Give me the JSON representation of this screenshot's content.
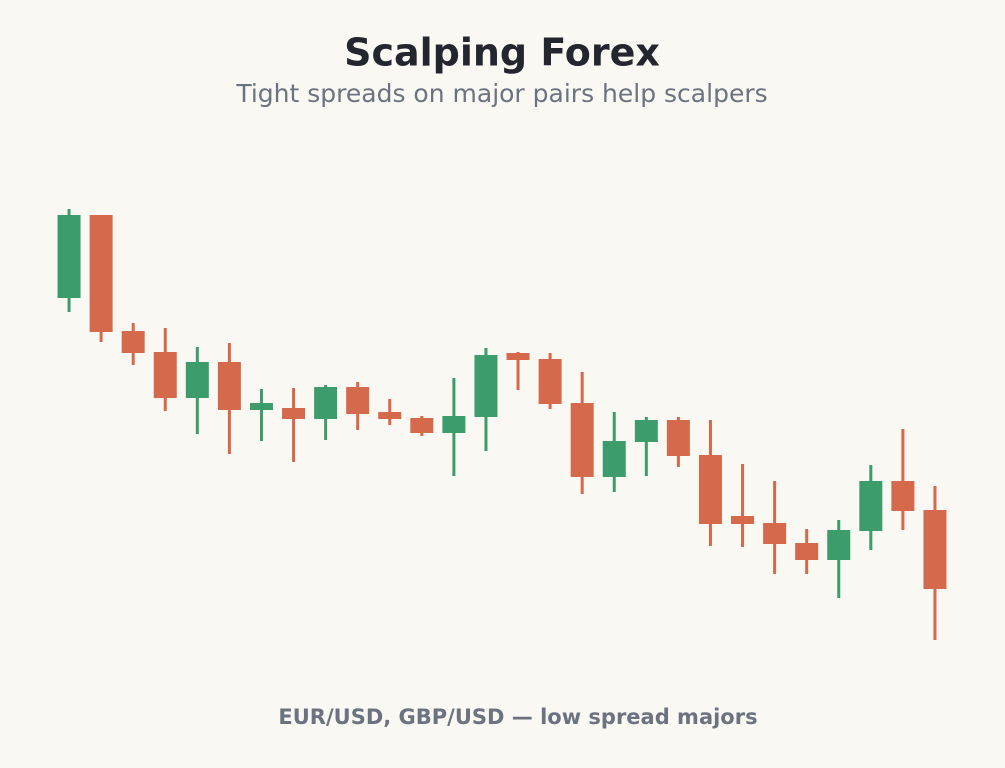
{
  "chart_data": {
    "type": "candlestick",
    "title": "Scalping Forex",
    "subtitle": "Tight spreads on major pairs help scalpers",
    "caption": "EUR/USD, GBP/USD — low spread majors",
    "up_color": "#3d9c6b",
    "down_color": "#d4694c",
    "ylim": [
      0,
      130
    ],
    "open": [
      90.5,
      111.25,
      82.25,
      77,
      65.5,
      74.5,
      62.5,
      63,
      60.25,
      68.25,
      62,
      60.5,
      56.75,
      60.75,
      76.75,
      75.25,
      64.25,
      45.75,
      54.5,
      60,
      51.25,
      36,
      34.25,
      29.25,
      25,
      32.25,
      44.75,
      37.5
    ],
    "high": [
      112.75,
      111.25,
      84.25,
      83,
      78.25,
      79.25,
      67.75,
      68,
      68.75,
      69.5,
      65.25,
      61,
      70.5,
      78,
      77,
      76.75,
      72,
      62,
      60.75,
      60.75,
      60,
      49,
      44.75,
      32.75,
      35,
      48.75,
      57.75,
      43.5
    ],
    "low": [
      87,
      79.5,
      73.75,
      62.25,
      56.5,
      51.5,
      54.75,
      49.5,
      55,
      57.5,
      58.75,
      56,
      46,
      52.25,
      67.5,
      62.75,
      41.5,
      42,
      46,
      48.25,
      28.5,
      28.25,
      21.5,
      21.5,
      15.5,
      27.5,
      32.5,
      5
    ],
    "close": [
      111.25,
      82,
      76.75,
      65.5,
      74.5,
      62.5,
      64.25,
      60.25,
      68.25,
      61.5,
      60.25,
      56.75,
      61,
      76.25,
      75,
      64,
      45.75,
      54.75,
      60,
      51,
      34,
      34,
      29,
      25,
      32.5,
      44.75,
      37.25,
      17.75
    ]
  }
}
